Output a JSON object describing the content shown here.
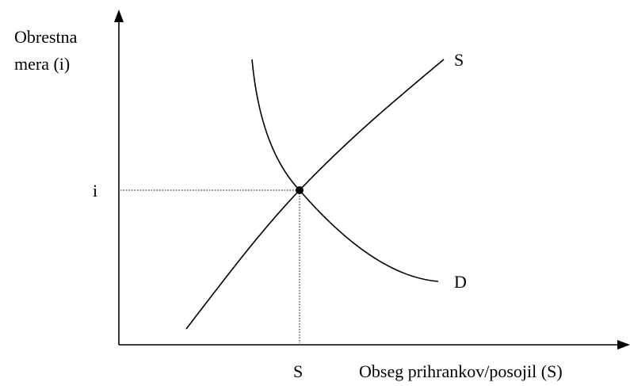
{
  "axes": {
    "y_label": [
      "Obrestna",
      "mera (i)"
    ],
    "x_label": "Obseg prihrankov/posojil (S)"
  },
  "curves": [
    {
      "label": "S"
    },
    {
      "label": "D"
    }
  ],
  "equilibrium": {
    "y_label": "i",
    "x_label": "S"
  }
}
